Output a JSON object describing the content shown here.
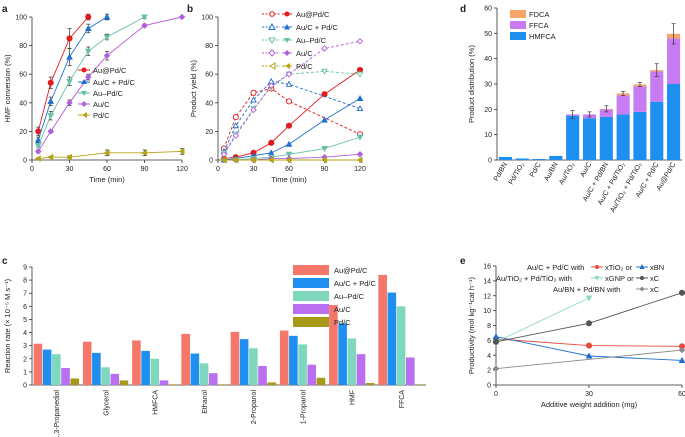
{
  "chart_data": [
    {
      "panel": "a",
      "type": "line",
      "xlabel": "Time (min)",
      "ylabel": "HMF conversion (%)",
      "xlim": [
        0,
        120
      ],
      "ylim": [
        0,
        100
      ],
      "xticks": [
        0,
        30,
        60,
        90,
        120
      ],
      "yticks": [
        0,
        20,
        40,
        60,
        80,
        100
      ],
      "series": [
        {
          "name": "Au@Pd/C",
          "color": "#e41a1c",
          "marker": "circle",
          "x": [
            5,
            15,
            30,
            45
          ],
          "y": [
            20,
            54,
            85,
            100
          ],
          "err": [
            3,
            4,
            7,
            2
          ]
        },
        {
          "name": "Au/C + Pd/C",
          "color": "#1f6fd1",
          "marker": "triangle",
          "x": [
            5,
            15,
            30,
            45,
            60
          ],
          "y": [
            14,
            41,
            72,
            92,
            100
          ],
          "err": [
            2,
            3,
            6,
            3,
            2
          ]
        },
        {
          "name": "Au–Pd/C",
          "color": "#66c2a5",
          "marker": "tri-down",
          "x": [
            5,
            15,
            30,
            45,
            60,
            90
          ],
          "y": [
            10,
            31,
            55,
            76,
            86,
            100
          ],
          "err": [
            1,
            3,
            3,
            3,
            2,
            1
          ]
        },
        {
          "name": "Au/C",
          "color": "#b35edc",
          "marker": "diamond",
          "x": [
            5,
            15,
            30,
            45,
            60,
            90,
            120
          ],
          "y": [
            6,
            20,
            40,
            58,
            73,
            94,
            100
          ],
          "err": [
            1,
            1,
            2,
            2,
            3,
            1,
            0
          ]
        },
        {
          "name": "Pd/C",
          "color": "#b5a416",
          "marker": "tri-left",
          "x": [
            5,
            15,
            30,
            60,
            90,
            120
          ],
          "y": [
            1,
            2,
            2,
            5,
            5,
            6
          ],
          "err": [
            0.5,
            0.5,
            1,
            2,
            2,
            2
          ]
        }
      ]
    },
    {
      "panel": "b",
      "type": "line",
      "xlabel": "Time (min)",
      "ylabel": "Product yield (%)",
      "xlim": [
        0,
        120
      ],
      "ylim": [
        0,
        100
      ],
      "xticks": [
        0,
        30,
        60,
        90,
        120
      ],
      "yticks": [
        0,
        20,
        40,
        60,
        80,
        100
      ],
      "legend": [
        "Au@Pd/C",
        "Au/C + Pd/C",
        "Au–Pd/C",
        "Au/C",
        "Pd/C"
      ],
      "series": [
        {
          "name": "Au@Pd/C",
          "product": "HMFCA",
          "style": "dashed",
          "filled": false,
          "color": "#e41a1c",
          "marker": "circle",
          "x": [
            5,
            15,
            30,
            45,
            60,
            120
          ],
          "y": [
            8,
            30,
            47,
            50,
            41,
            18
          ]
        },
        {
          "name": "Au@Pd/C",
          "product": "FFCA",
          "style": "solid",
          "filled": true,
          "color": "#e41a1c",
          "marker": "circle",
          "x": [
            5,
            15,
            30,
            45,
            60,
            90,
            120
          ],
          "y": [
            1,
            2,
            5,
            12,
            24,
            46,
            63
          ]
        },
        {
          "name": "Au/C + Pd/C",
          "product": "HMFCA",
          "style": "dashed",
          "filled": false,
          "color": "#1f6fd1",
          "marker": "triangle",
          "x": [
            5,
            15,
            30,
            45,
            60,
            120
          ],
          "y": [
            6,
            24,
            42,
            55,
            53,
            36
          ]
        },
        {
          "name": "Au/C + Pd/C",
          "product": "FFCA",
          "style": "solid",
          "filled": true,
          "color": "#1f6fd1",
          "marker": "triangle",
          "x": [
            5,
            15,
            30,
            45,
            60,
            90,
            120
          ],
          "y": [
            0,
            1,
            3,
            5,
            11,
            28,
            43
          ]
        },
        {
          "name": "Au–Pd/C",
          "product": "HMFCA",
          "style": "dashed",
          "filled": false,
          "color": "#66c2a5",
          "marker": "tri-down",
          "x": [
            5,
            15,
            30,
            45,
            60,
            90,
            120
          ],
          "y": [
            5,
            18,
            36,
            51,
            60,
            62,
            60
          ]
        },
        {
          "name": "Au–Pd/C",
          "product": "FFCA",
          "style": "solid",
          "filled": true,
          "color": "#66c2a5",
          "marker": "tri-down",
          "x": [
            5,
            15,
            30,
            45,
            60,
            90,
            120
          ],
          "y": [
            0,
            0,
            1,
            2,
            4,
            8,
            16
          ]
        },
        {
          "name": "Au/C",
          "product": "HMFCA",
          "style": "dashed",
          "filled": false,
          "color": "#b35edc",
          "marker": "diamond",
          "x": [
            5,
            15,
            30,
            45,
            60,
            90,
            120
          ],
          "y": [
            4,
            17,
            35,
            52,
            60,
            78,
            83
          ]
        },
        {
          "name": "Au/C",
          "product": "FFCA",
          "style": "solid",
          "filled": true,
          "color": "#b35edc",
          "marker": "diamond",
          "x": [
            5,
            15,
            30,
            45,
            60,
            90,
            120
          ],
          "y": [
            0,
            0,
            0,
            1,
            1,
            2,
            4
          ]
        },
        {
          "name": "Pd/C",
          "product": "HMFCA",
          "style": "dashed",
          "filled": false,
          "color": "#b5a416",
          "marker": "tri-left",
          "x": [
            5,
            15,
            30,
            45,
            60,
            90,
            120
          ],
          "y": [
            0,
            0,
            0,
            0,
            0,
            0,
            0
          ]
        },
        {
          "name": "Pd/C",
          "product": "FFCA",
          "style": "solid",
          "filled": true,
          "color": "#b5a416",
          "marker": "tri-left",
          "x": [
            5,
            15,
            30,
            45,
            60,
            90,
            120
          ],
          "y": [
            0,
            0,
            0,
            0,
            0,
            0,
            0
          ]
        }
      ]
    },
    {
      "panel": "c",
      "type": "bar",
      "ylabel": "Reaction rate (× 10⁻⁵ M s⁻¹)",
      "ylim": [
        0,
        9
      ],
      "yticks": [
        0,
        1,
        2,
        3,
        4,
        5,
        6,
        7,
        8,
        9
      ],
      "categories": [
        "1,3-Propanediol",
        "Glycerol",
        "HMFCA",
        "Ethanol",
        "2-Propanol",
        "1-Propanol",
        "HMF",
        "FFCA"
      ],
      "series": [
        {
          "name": "Au@Pd/C",
          "color": "#f4776a",
          "values": [
            3.15,
            3.3,
            3.4,
            3.9,
            4.05,
            4.15,
            6.1,
            8.4
          ]
        },
        {
          "name": "Au/C + Pd/C",
          "color": "#1f8fef",
          "values": [
            2.7,
            2.45,
            2.6,
            2.4,
            3.5,
            3.75,
            4.7,
            7.05
          ]
        },
        {
          "name": "Au–Pd/C",
          "color": "#7fd8bd",
          "values": [
            2.35,
            1.35,
            2.0,
            1.65,
            2.8,
            3.1,
            3.55,
            6.0
          ]
        },
        {
          "name": "Au/C",
          "color": "#b96ff0",
          "values": [
            1.3,
            0.85,
            0.35,
            0.9,
            1.45,
            1.55,
            2.35,
            2.1
          ]
        },
        {
          "name": "Pd/C",
          "color": "#a89a16",
          "values": [
            0.5,
            0.35,
            0.05,
            0.05,
            0.2,
            0.55,
            0.15,
            0.05
          ]
        }
      ]
    },
    {
      "panel": "d",
      "type": "bar",
      "stacked": true,
      "ylabel": "Product distribution (%)",
      "ylim": [
        0,
        60
      ],
      "yticks": [
        0,
        10,
        20,
        30,
        40,
        50,
        60
      ],
      "categories": [
        "Pd/BN",
        "Pd/TiO₂",
        "Pd/C",
        "Au/BN",
        "Au/TiO₂",
        "Au/C",
        "Au/C + Pd/BN",
        "Au/C + Pd/TiO₂",
        "Au/TiO₂ + Pd/TiO₂",
        "Au/C + Pd/C",
        "Au@Pd/C"
      ],
      "series": [
        {
          "name": "HMFCA",
          "color": "#1f8fef",
          "values": [
            1.2,
            0.6,
            0.4,
            1.6,
            17.5,
            16.5,
            17,
            18,
            19,
            23,
            30
          ]
        },
        {
          "name": "FFCA",
          "color": "#c77cf2",
          "values": [
            0,
            0,
            0,
            0,
            0.5,
            1.5,
            3,
            7.5,
            10,
            12,
            18
          ]
        },
        {
          "name": "FDCA",
          "color": "#f5a46a",
          "values": [
            0,
            0,
            0,
            0,
            0,
            0,
            0.2,
            0.8,
            0.8,
            0.5,
            1.8
          ]
        }
      ],
      "totals_err": [
        0,
        0,
        0,
        0,
        1.5,
        1,
        1.2,
        0.8,
        0.8,
        2.5,
        4
      ]
    },
    {
      "panel": "e",
      "type": "line",
      "xlabel": "Additive weight addition (mg)",
      "ylabel": "Productivity (mol kg⁻¹cat h⁻¹)",
      "xlim": [
        0,
        60
      ],
      "ylim": [
        0,
        16
      ],
      "xticks": [
        0,
        30,
        60
      ],
      "yticks": [
        0,
        2,
        4,
        6,
        8,
        10,
        12,
        14,
        16
      ],
      "series": [
        {
          "name": "xTiO₂",
          "color": "#e84a3b",
          "marker": "circle",
          "x": [
            0,
            30,
            60
          ],
          "y": [
            6.2,
            5.3,
            5.2
          ]
        },
        {
          "name": "xBN",
          "color": "#1f6fd1",
          "marker": "triangle",
          "x": [
            0,
            30,
            60
          ],
          "y": [
            6.5,
            3.9,
            3.3
          ]
        },
        {
          "name": "xGNP",
          "color": "#8fd9bd",
          "marker": "tri-down",
          "x": [
            0,
            30
          ],
          "y": [
            5.8,
            11.7
          ]
        },
        {
          "name": "xC (TiO₂)",
          "color": "#555555",
          "marker": "circle",
          "x": [
            0,
            30,
            60
          ],
          "y": [
            5.8,
            8.3,
            12.4
          ]
        },
        {
          "name": "xC (BN)",
          "color": "#888888",
          "marker": "diamond",
          "x": [
            0,
            60
          ],
          "y": [
            2.2,
            4.7
          ]
        }
      ]
    }
  ],
  "panel_labels": {
    "a": "a",
    "b": "b",
    "c": "c",
    "d": "d",
    "e": "e"
  },
  "legends": {
    "a": [
      "Au@Pd/C",
      "Au/C + Pd/C",
      "Au–Pd/C",
      "Au/C",
      "Pd/C"
    ],
    "c": [
      "Au@Pd/C",
      "Au/C + Pd/C",
      "Au–Pd/C",
      "Au/C",
      "Pd/C"
    ],
    "d": [
      "FDCA",
      "FFCA",
      "HMFCA"
    ],
    "e": {
      "row1": {
        "prefix": "Au/C + Pd/C with",
        "a": "xTiO₂ or",
        "b": "xBN"
      },
      "row2": {
        "prefix": "Au/TiO₂ + Pd/TiO₂ with",
        "a": "xGNP or",
        "b": "xC"
      },
      "row3": {
        "prefix": "Au/BN + Pd/BN with",
        "b": "xC"
      }
    }
  }
}
